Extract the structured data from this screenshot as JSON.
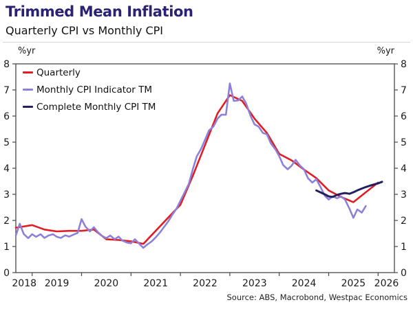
{
  "header": {
    "title": "Trimmed Mean Inflation",
    "subtitle": "Quarterly CPI vs Monthly CPI"
  },
  "axis_units": {
    "left": "%yr",
    "right": "%yr"
  },
  "source": "Source: ABS, Macrobond, Westpac Economics",
  "colors": {
    "title_accent": "#2a2273",
    "frame": "#474747",
    "text": "#1a1a1a",
    "quarterly_red": "#e11d23",
    "monthly_purple": "#8c80d8",
    "complete_monthly_navy": "#23205f"
  },
  "chart_data": {
    "type": "line",
    "title": "Trimmed Mean Inflation",
    "subtitle": "Quarterly CPI vs Monthly CPI",
    "xlabel": "",
    "ylabel": "%yr",
    "grid": false,
    "legend_position": "top-left",
    "frame_color": "#474747",
    "x_domain": [
      2018.67,
      2026.33
    ],
    "y_domain": [
      0,
      8
    ],
    "y_ticks": [
      0,
      1,
      2,
      3,
      4,
      5,
      6,
      7,
      8
    ],
    "x_ticks": [
      2019,
      2020,
      2021,
      2022,
      2023,
      2024,
      2025,
      2026
    ],
    "x_labels": [
      {
        "text": "2018",
        "x": 2018.84
      },
      {
        "text": "2019",
        "x": 2019.5
      },
      {
        "text": "2020",
        "x": 2020.5
      },
      {
        "text": "2021",
        "x": 2021.5
      },
      {
        "text": "2022",
        "x": 2022.5
      },
      {
        "text": "2023",
        "x": 2023.5
      },
      {
        "text": "2024",
        "x": 2024.5
      },
      {
        "text": "2025",
        "x": 2025.5
      },
      {
        "text": "2026",
        "x": 2026.17
      }
    ],
    "series": [
      {
        "name": "Quarterly",
        "color": "#e11d23",
        "width": 2.6,
        "points": [
          [
            2018.67,
            1.72
          ],
          [
            2019.0,
            1.82
          ],
          [
            2019.25,
            1.65
          ],
          [
            2019.5,
            1.58
          ],
          [
            2019.75,
            1.6
          ],
          [
            2020.0,
            1.6
          ],
          [
            2020.25,
            1.65
          ],
          [
            2020.5,
            1.28
          ],
          [
            2020.75,
            1.25
          ],
          [
            2021.0,
            1.2
          ],
          [
            2021.25,
            1.1
          ],
          [
            2021.5,
            1.6
          ],
          [
            2021.75,
            2.1
          ],
          [
            2022.0,
            2.6
          ],
          [
            2022.25,
            3.7
          ],
          [
            2022.5,
            4.9
          ],
          [
            2022.75,
            6.1
          ],
          [
            2023.0,
            6.8
          ],
          [
            2023.25,
            6.58
          ],
          [
            2023.5,
            5.9
          ],
          [
            2023.75,
            5.35
          ],
          [
            2024.0,
            4.55
          ],
          [
            2024.25,
            4.3
          ],
          [
            2024.5,
            3.95
          ],
          [
            2024.75,
            3.62
          ],
          [
            2025.0,
            3.15
          ],
          [
            2025.25,
            2.9
          ],
          [
            2025.5,
            2.7
          ],
          [
            2025.75,
            3.08
          ],
          [
            2026.0,
            3.45
          ]
        ]
      },
      {
        "name": "Monthly CPI Indicator TM",
        "color": "#8c80d8",
        "width": 2.6,
        "points": [
          [
            2018.67,
            1.42
          ],
          [
            2018.75,
            1.87
          ],
          [
            2018.83,
            1.48
          ],
          [
            2018.92,
            1.32
          ],
          [
            2019.0,
            1.47
          ],
          [
            2019.08,
            1.37
          ],
          [
            2019.17,
            1.47
          ],
          [
            2019.25,
            1.33
          ],
          [
            2019.33,
            1.42
          ],
          [
            2019.42,
            1.47
          ],
          [
            2019.5,
            1.37
          ],
          [
            2019.58,
            1.33
          ],
          [
            2019.67,
            1.43
          ],
          [
            2019.75,
            1.38
          ],
          [
            2019.83,
            1.45
          ],
          [
            2019.92,
            1.52
          ],
          [
            2020.0,
            2.05
          ],
          [
            2020.08,
            1.76
          ],
          [
            2020.17,
            1.58
          ],
          [
            2020.25,
            1.74
          ],
          [
            2020.33,
            1.55
          ],
          [
            2020.42,
            1.4
          ],
          [
            2020.5,
            1.32
          ],
          [
            2020.58,
            1.42
          ],
          [
            2020.67,
            1.28
          ],
          [
            2020.75,
            1.38
          ],
          [
            2020.83,
            1.22
          ],
          [
            2020.92,
            1.15
          ],
          [
            2021.0,
            1.12
          ],
          [
            2021.08,
            1.28
          ],
          [
            2021.17,
            1.1
          ],
          [
            2021.25,
            0.95
          ],
          [
            2021.33,
            1.08
          ],
          [
            2021.42,
            1.2
          ],
          [
            2021.5,
            1.35
          ],
          [
            2021.58,
            1.52
          ],
          [
            2021.67,
            1.75
          ],
          [
            2021.75,
            1.95
          ],
          [
            2021.83,
            2.2
          ],
          [
            2021.92,
            2.45
          ],
          [
            2022.0,
            2.75
          ],
          [
            2022.08,
            3.05
          ],
          [
            2022.17,
            3.4
          ],
          [
            2022.25,
            3.95
          ],
          [
            2022.33,
            4.45
          ],
          [
            2022.42,
            4.75
          ],
          [
            2022.5,
            5.1
          ],
          [
            2022.58,
            5.45
          ],
          [
            2022.67,
            5.6
          ],
          [
            2022.75,
            5.9
          ],
          [
            2022.83,
            6.05
          ],
          [
            2022.92,
            6.05
          ],
          [
            2023.0,
            7.25
          ],
          [
            2023.08,
            6.58
          ],
          [
            2023.17,
            6.6
          ],
          [
            2023.25,
            6.75
          ],
          [
            2023.33,
            6.48
          ],
          [
            2023.42,
            6.0
          ],
          [
            2023.5,
            5.68
          ],
          [
            2023.58,
            5.6
          ],
          [
            2023.67,
            5.35
          ],
          [
            2023.75,
            5.3
          ],
          [
            2023.83,
            4.95
          ],
          [
            2023.92,
            4.73
          ],
          [
            2024.0,
            4.46
          ],
          [
            2024.08,
            4.12
          ],
          [
            2024.17,
            3.96
          ],
          [
            2024.25,
            4.1
          ],
          [
            2024.33,
            4.32
          ],
          [
            2024.42,
            4.1
          ],
          [
            2024.5,
            3.96
          ],
          [
            2024.58,
            3.62
          ],
          [
            2024.67,
            3.45
          ],
          [
            2024.75,
            3.58
          ],
          [
            2024.83,
            3.3
          ],
          [
            2024.92,
            2.95
          ],
          [
            2025.0,
            2.8
          ],
          [
            2025.08,
            2.92
          ],
          [
            2025.17,
            2.85
          ],
          [
            2025.25,
            2.92
          ],
          [
            2025.33,
            2.8
          ],
          [
            2025.42,
            2.45
          ],
          [
            2025.5,
            2.1
          ],
          [
            2025.58,
            2.42
          ],
          [
            2025.67,
            2.3
          ],
          [
            2025.75,
            2.55
          ]
        ]
      },
      {
        "name": "Complete Monthly CPI TM",
        "color": "#23205f",
        "width": 3,
        "points": [
          [
            2024.75,
            3.15
          ],
          [
            2024.83,
            3.08
          ],
          [
            2024.92,
            3.0
          ],
          [
            2025.0,
            2.92
          ],
          [
            2025.08,
            2.9
          ],
          [
            2025.17,
            2.98
          ],
          [
            2025.25,
            3.02
          ],
          [
            2025.33,
            3.05
          ],
          [
            2025.42,
            3.02
          ],
          [
            2025.5,
            3.08
          ],
          [
            2025.58,
            3.15
          ],
          [
            2025.67,
            3.22
          ],
          [
            2025.75,
            3.28
          ],
          [
            2025.83,
            3.33
          ],
          [
            2025.92,
            3.38
          ],
          [
            2026.0,
            3.42
          ],
          [
            2026.08,
            3.48
          ]
        ]
      }
    ]
  }
}
